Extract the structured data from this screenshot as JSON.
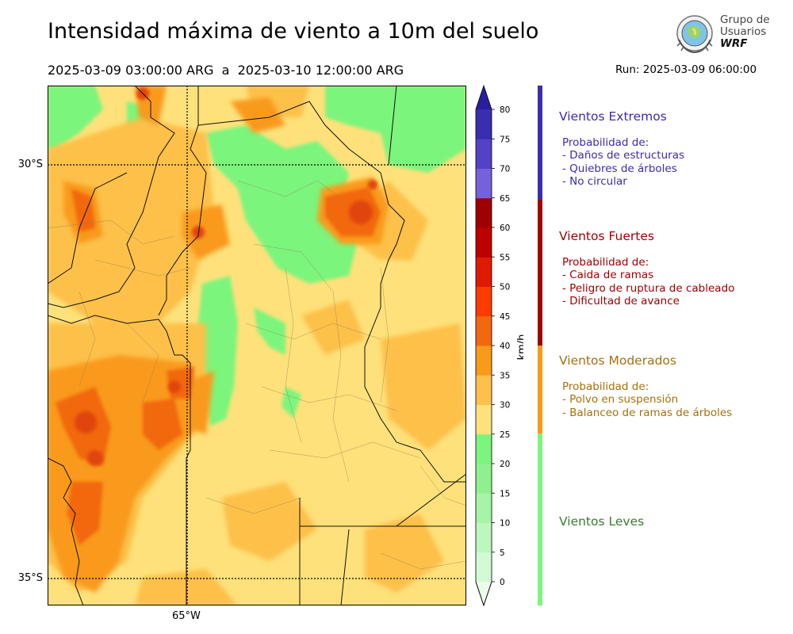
{
  "title": "Intensidad máxima de viento a 10m del suelo",
  "period": "2025-03-09 03:00:00 ARG  a  2025-03-10 12:00:00 ARG",
  "run": "Run: 2025-03-09 06:00:00",
  "logo": {
    "line1": "Grupo de",
    "line2": "Usuarios",
    "line3": "WRF"
  },
  "map": {
    "lat_labels": [
      "30°S",
      "35°S"
    ],
    "lon_labels": [
      "65°W"
    ],
    "colors": {
      "light_green": "#7CF57C",
      "pale_yellow": "#FEE17A",
      "yellow_orange": "#FDC04A",
      "orange": "#F99A1A",
      "dark_orange": "#F2680E",
      "red_orange": "#E0440A"
    }
  },
  "colorbar": {
    "unit": "km/h",
    "ticks": [
      "0",
      "5",
      "10",
      "15",
      "20",
      "25",
      "30",
      "35",
      "40",
      "45",
      "50",
      "55",
      "60",
      "65",
      "70",
      "75",
      "80"
    ],
    "colors": [
      "#E9FDE9",
      "#D3FAD3",
      "#BDF7BD",
      "#A6F4A6",
      "#8EF18E",
      "#7CF57C",
      "#FEE17A",
      "#FDC04A",
      "#F99A1A",
      "#F2680E",
      "#FF3A00",
      "#DF1A00",
      "#BE0000",
      "#A00000",
      "#7561DB",
      "#5342C8",
      "#3A2DB0",
      "#2A1E9E"
    ]
  },
  "categories": [
    {
      "title": "Vientos Extremos",
      "color": "#3A2DB0",
      "lines": [
        "Probabilidad de:",
        "- Daños de estructuras",
        "- Quiebres de árboles",
        "- No circular"
      ]
    },
    {
      "title": "Vientos Fuertes",
      "color": "#A00000",
      "lines": [
        "Probabilidad de:",
        "- Caida de ramas",
        "- Peligro de ruptura de cableado",
        "- Dificultad de avance"
      ]
    },
    {
      "title": "Vientos Moderados",
      "color": "#A8700C",
      "bar_color": "#F99A1A",
      "lines": [
        "Probabilidad de:",
        "- Polvo en suspensión",
        "- Balanceo de ramas de árboles"
      ]
    },
    {
      "title": "Vientos Leves",
      "color": "#3A7D2E",
      "bar_color": "#7CF57C",
      "lines": []
    }
  ]
}
